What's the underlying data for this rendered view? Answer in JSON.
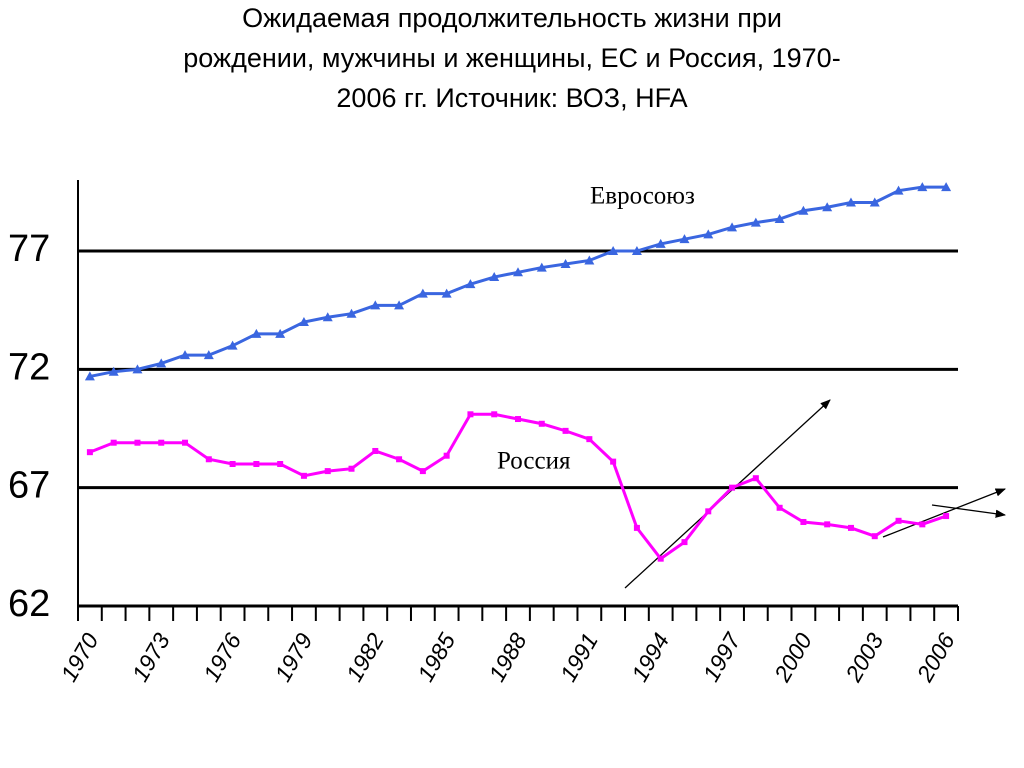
{
  "chart_data": {
    "type": "line",
    "title": [
      "Ожидаемая продолжительность жизни при",
      "рождении, мужчины и женщины, ЕС и Россия, 1970-",
      "2006 гг. Источник: ВОЗ, HFA"
    ],
    "categories": [
      "1970",
      null,
      null,
      "1973",
      null,
      null,
      "1976",
      null,
      null,
      "1979",
      null,
      null,
      "1982",
      null,
      null,
      "1985",
      null,
      null,
      "1988",
      null,
      null,
      "1991",
      null,
      null,
      "1994",
      null,
      null,
      "1997",
      null,
      null,
      "2000",
      null,
      null,
      "2003",
      null,
      null,
      "2006"
    ],
    "series": [
      {
        "name": "Евросоюз",
        "color": "#3a66e0",
        "marker": "triangle",
        "values": [
          71.7,
          71.9,
          72.0,
          72.25,
          72.6,
          72.6,
          73.0,
          73.5,
          73.5,
          74.0,
          74.2,
          74.35,
          74.7,
          74.7,
          75.2,
          75.2,
          75.6,
          75.9,
          76.1,
          76.3,
          76.45,
          76.6,
          77.0,
          77.0,
          77.3,
          77.5,
          77.7,
          78.0,
          78.2,
          78.35,
          78.7,
          78.85,
          79.05,
          79.05,
          79.55,
          79.7,
          79.7
        ]
      },
      {
        "name": "Россия",
        "color": "#ff00ff",
        "marker": "square",
        "values": [
          68.5,
          68.9,
          68.9,
          68.9,
          68.9,
          68.2,
          68.0,
          68.0,
          68.0,
          67.5,
          67.7,
          67.8,
          68.55,
          68.2,
          67.7,
          68.35,
          70.1,
          70.1,
          69.9,
          69.7,
          69.4,
          69.05,
          68.1,
          65.3,
          64.0,
          64.7,
          66.0,
          67.0,
          67.4,
          66.15,
          65.55,
          65.45,
          65.3,
          64.95,
          65.6,
          65.45,
          65.8
        ]
      }
    ],
    "ylim": [
      62,
      80
    ],
    "yticks": [
      62,
      67,
      72,
      77
    ],
    "grid": true
  }
}
